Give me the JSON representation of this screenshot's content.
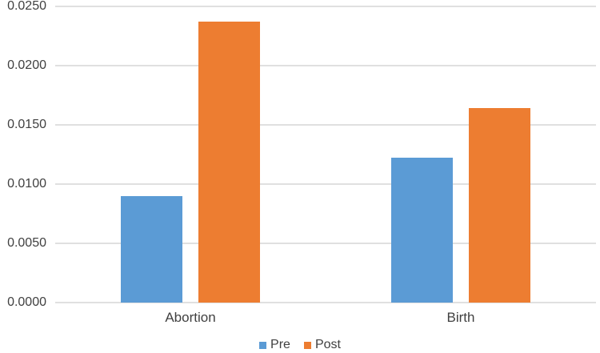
{
  "chart_data": {
    "type": "bar",
    "title": "",
    "xlabel": "",
    "ylabel": "",
    "categories": [
      "Abortion",
      "Birth"
    ],
    "series": [
      {
        "name": "Pre",
        "color": "#5B9BD5",
        "values": [
          0.009,
          0.0122
        ]
      },
      {
        "name": "Post",
        "color": "#ED7D31",
        "values": [
          0.0237,
          0.0164
        ]
      }
    ],
    "ylim": [
      0,
      0.025
    ],
    "y_ticks": [
      0,
      0.005,
      0.01,
      0.015,
      0.02,
      0.025
    ],
    "y_tick_labels": [
      "0.0000",
      "0.0050",
      "0.0100",
      "0.0150",
      "0.0200",
      "0.0250"
    ],
    "grid": "horizontal",
    "legend_position": "bottom-center"
  },
  "colors": {
    "grid": "#e0e0e0",
    "text": "#404040",
    "background": "#ffffff"
  }
}
